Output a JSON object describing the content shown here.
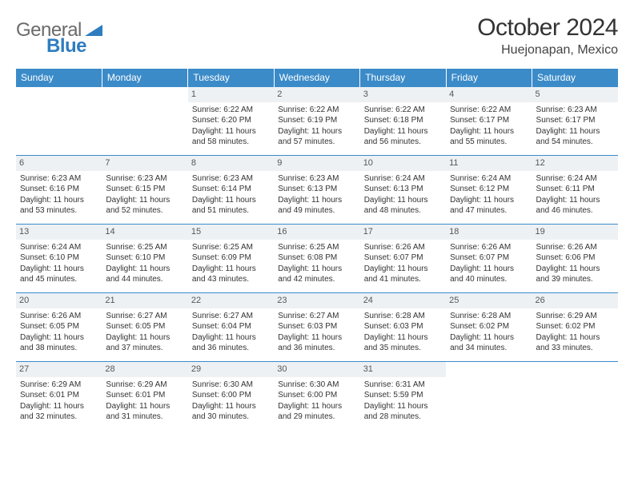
{
  "logo": {
    "textA": "General",
    "textB": "Blue"
  },
  "title": "October 2024",
  "location": "Huejonapan, Mexico",
  "colors": {
    "headerBg": "#3b8bc9",
    "headerText": "#ffffff",
    "dayNumBg": "#eef1f4",
    "borderTop": "#3b8bc9",
    "logoGray": "#6b6b6b",
    "logoBlue": "#2f7dc0"
  },
  "dayHeaders": [
    "Sunday",
    "Monday",
    "Tuesday",
    "Wednesday",
    "Thursday",
    "Friday",
    "Saturday"
  ],
  "weeks": [
    [
      null,
      null,
      {
        "n": "1",
        "sr": "6:22 AM",
        "ss": "6:20 PM",
        "dl": "11 hours and 58 minutes."
      },
      {
        "n": "2",
        "sr": "6:22 AM",
        "ss": "6:19 PM",
        "dl": "11 hours and 57 minutes."
      },
      {
        "n": "3",
        "sr": "6:22 AM",
        "ss": "6:18 PM",
        "dl": "11 hours and 56 minutes."
      },
      {
        "n": "4",
        "sr": "6:22 AM",
        "ss": "6:17 PM",
        "dl": "11 hours and 55 minutes."
      },
      {
        "n": "5",
        "sr": "6:23 AM",
        "ss": "6:17 PM",
        "dl": "11 hours and 54 minutes."
      }
    ],
    [
      {
        "n": "6",
        "sr": "6:23 AM",
        "ss": "6:16 PM",
        "dl": "11 hours and 53 minutes."
      },
      {
        "n": "7",
        "sr": "6:23 AM",
        "ss": "6:15 PM",
        "dl": "11 hours and 52 minutes."
      },
      {
        "n": "8",
        "sr": "6:23 AM",
        "ss": "6:14 PM",
        "dl": "11 hours and 51 minutes."
      },
      {
        "n": "9",
        "sr": "6:23 AM",
        "ss": "6:13 PM",
        "dl": "11 hours and 49 minutes."
      },
      {
        "n": "10",
        "sr": "6:24 AM",
        "ss": "6:13 PM",
        "dl": "11 hours and 48 minutes."
      },
      {
        "n": "11",
        "sr": "6:24 AM",
        "ss": "6:12 PM",
        "dl": "11 hours and 47 minutes."
      },
      {
        "n": "12",
        "sr": "6:24 AM",
        "ss": "6:11 PM",
        "dl": "11 hours and 46 minutes."
      }
    ],
    [
      {
        "n": "13",
        "sr": "6:24 AM",
        "ss": "6:10 PM",
        "dl": "11 hours and 45 minutes."
      },
      {
        "n": "14",
        "sr": "6:25 AM",
        "ss": "6:10 PM",
        "dl": "11 hours and 44 minutes."
      },
      {
        "n": "15",
        "sr": "6:25 AM",
        "ss": "6:09 PM",
        "dl": "11 hours and 43 minutes."
      },
      {
        "n": "16",
        "sr": "6:25 AM",
        "ss": "6:08 PM",
        "dl": "11 hours and 42 minutes."
      },
      {
        "n": "17",
        "sr": "6:26 AM",
        "ss": "6:07 PM",
        "dl": "11 hours and 41 minutes."
      },
      {
        "n": "18",
        "sr": "6:26 AM",
        "ss": "6:07 PM",
        "dl": "11 hours and 40 minutes."
      },
      {
        "n": "19",
        "sr": "6:26 AM",
        "ss": "6:06 PM",
        "dl": "11 hours and 39 minutes."
      }
    ],
    [
      {
        "n": "20",
        "sr": "6:26 AM",
        "ss": "6:05 PM",
        "dl": "11 hours and 38 minutes."
      },
      {
        "n": "21",
        "sr": "6:27 AM",
        "ss": "6:05 PM",
        "dl": "11 hours and 37 minutes."
      },
      {
        "n": "22",
        "sr": "6:27 AM",
        "ss": "6:04 PM",
        "dl": "11 hours and 36 minutes."
      },
      {
        "n": "23",
        "sr": "6:27 AM",
        "ss": "6:03 PM",
        "dl": "11 hours and 36 minutes."
      },
      {
        "n": "24",
        "sr": "6:28 AM",
        "ss": "6:03 PM",
        "dl": "11 hours and 35 minutes."
      },
      {
        "n": "25",
        "sr": "6:28 AM",
        "ss": "6:02 PM",
        "dl": "11 hours and 34 minutes."
      },
      {
        "n": "26",
        "sr": "6:29 AM",
        "ss": "6:02 PM",
        "dl": "11 hours and 33 minutes."
      }
    ],
    [
      {
        "n": "27",
        "sr": "6:29 AM",
        "ss": "6:01 PM",
        "dl": "11 hours and 32 minutes."
      },
      {
        "n": "28",
        "sr": "6:29 AM",
        "ss": "6:01 PM",
        "dl": "11 hours and 31 minutes."
      },
      {
        "n": "29",
        "sr": "6:30 AM",
        "ss": "6:00 PM",
        "dl": "11 hours and 30 minutes."
      },
      {
        "n": "30",
        "sr": "6:30 AM",
        "ss": "6:00 PM",
        "dl": "11 hours and 29 minutes."
      },
      {
        "n": "31",
        "sr": "6:31 AM",
        "ss": "5:59 PM",
        "dl": "11 hours and 28 minutes."
      },
      null,
      null
    ]
  ],
  "labels": {
    "sunrise": "Sunrise:",
    "sunset": "Sunset:",
    "daylight": "Daylight:"
  }
}
